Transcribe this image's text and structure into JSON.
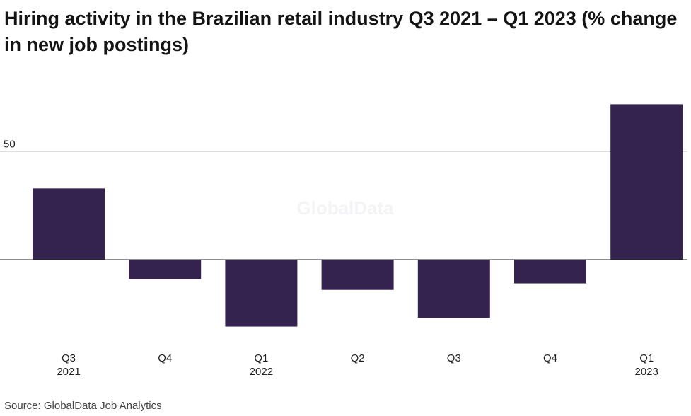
{
  "title": "Hiring activity in the Brazilian retail industry Q3 2021 – Q1 2023 (% change in new job postings)",
  "watermark": "GlobalData",
  "source": "Source: GlobalData Job Analytics",
  "chart_data": {
    "type": "bar",
    "title": "Hiring activity in the Brazilian retail industry Q3 2021 – Q1 2023 (% change in new job postings)",
    "categories": [
      "Q3 2021",
      "Q4",
      "Q1 2022",
      "Q2",
      "Q3",
      "Q4",
      "Q1 2023"
    ],
    "category_lines": [
      [
        "Q3",
        "2021"
      ],
      [
        "Q4"
      ],
      [
        "Q1",
        "2022"
      ],
      [
        "Q2"
      ],
      [
        "Q3"
      ],
      [
        "Q4"
      ],
      [
        "Q1",
        "2023"
      ]
    ],
    "values": [
      33,
      -9,
      -31,
      -14,
      -27,
      -11,
      72
    ],
    "ylim": [
      -40,
      80
    ],
    "yticks": [
      50
    ],
    "bar_color": "#35234f",
    "grid": true
  }
}
